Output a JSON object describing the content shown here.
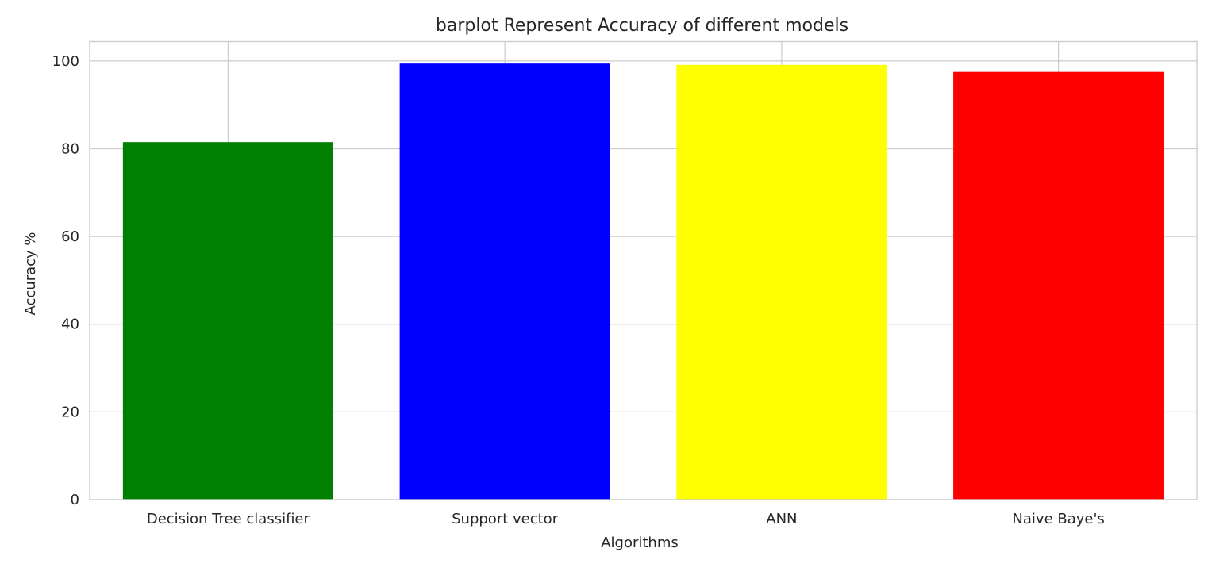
{
  "chart_data": {
    "type": "bar",
    "title": "barplot Represent Accuracy of different models",
    "xlabel": "Algorithms",
    "ylabel": "Accuracy %",
    "categories": [
      "Decision Tree classifier",
      "Support vector",
      "ANN",
      "Naive Baye's"
    ],
    "values": [
      81.5,
      99.4,
      99.1,
      97.5
    ],
    "colors": [
      "#008000",
      "#0000ff",
      "#ffff00",
      "#ff0000"
    ],
    "ylim": [
      0,
      104.4
    ],
    "yticks": [
      0,
      20,
      40,
      60,
      80,
      100
    ],
    "grid": true,
    "legend": "none"
  }
}
